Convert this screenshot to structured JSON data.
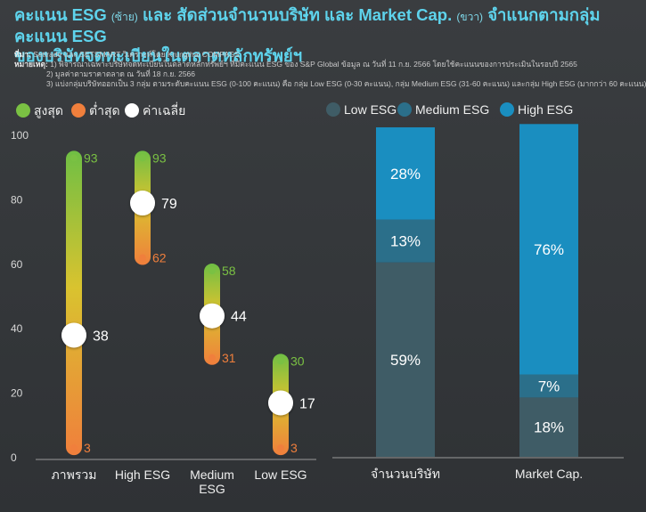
{
  "title": {
    "line1_a": "คะแนน ESG",
    "line1_b": "(ซ้าย)",
    "line1_c": "และ สัดส่วนจำนวนบริษัท และ Market Cap.",
    "line1_d": "(ขวา)",
    "line1_e": "จำแนกตามกลุ่มคะแนน ESG",
    "line2": "ของบริษัทจดทะเบียนในตลาดหลักทรัพย์ฯ"
  },
  "notes": {
    "source_label": "ที่มา:",
    "source": "Settrade และ SETSMART วิเคราะห์โดย Krungthai COMPASS",
    "remark_label": "หมายเหตุ:",
    "remark1": "1) พิจารณาเฉพาะบริษัทจดทะเบียนในตลาดหลักทรัพย์ฯ ที่มีคะแนน ESG ของ S&P Global ข้อมูล ณ วันที่ 11 ก.ย. 2566 โดยใช้คะแนนของการประเมินในรอบปี 2565",
    "remark2": "2) มูลค่าตามราคาตลาด ณ วันที่ 18 ก.ย. 2566",
    "remark3": "3) แบ่งกลุ่มบริษัทออกเป็น 3 กลุ่ม ตามระดับคะแนน ESG (0-100 คะแนน) คือ กลุ่ม Low ESG (0-30 คะแนน), กลุ่ม Medium ESG (31-60 คะแนน) และกลุ่ม High ESG (มากกว่า 60 คะแนน)"
  },
  "chart_data": [
    {
      "type": "range",
      "legend": [
        "สูงสุด",
        "ต่ำสุด",
        "ค่าเฉลี่ย"
      ],
      "categories": [
        "ภาพรวม",
        "High ESG",
        "Medium ESG",
        "Low ESG"
      ],
      "series": [
        {
          "name": "สูงสุด",
          "values": [
            93,
            93,
            58,
            30
          ]
        },
        {
          "name": "ต่ำสุด",
          "values": [
            3,
            62,
            31,
            3
          ]
        },
        {
          "name": "ค่าเฉลี่ย",
          "values": [
            38,
            79,
            44,
            17
          ]
        }
      ],
      "yticks": [
        0,
        20,
        40,
        60,
        80,
        100
      ],
      "ylim": [
        0,
        100
      ],
      "colors": {
        "max": "#7ac143",
        "min": "#f07f3c",
        "avg": "#ffffff"
      }
    },
    {
      "type": "stacked-bar",
      "legend": [
        "Low ESG",
        "Medium ESG",
        "High ESG"
      ],
      "categories": [
        "จำนวนบริษัท",
        "Market Cap."
      ],
      "series": [
        {
          "name": "Low ESG",
          "values": [
            59,
            18
          ],
          "labels": [
            "59%",
            "18%"
          ]
        },
        {
          "name": "Medium ESG",
          "values": [
            13,
            7
          ],
          "labels": [
            "13%",
            "7%"
          ]
        },
        {
          "name": "High ESG",
          "values": [
            28,
            76
          ],
          "labels": [
            "28%",
            "76%"
          ]
        }
      ],
      "ylim": [
        0,
        100
      ],
      "colors": {
        "Low ESG": "#3f5c66",
        "Medium ESG": "#2b6f8a",
        "High ESG": "#1a8ec0"
      }
    }
  ]
}
